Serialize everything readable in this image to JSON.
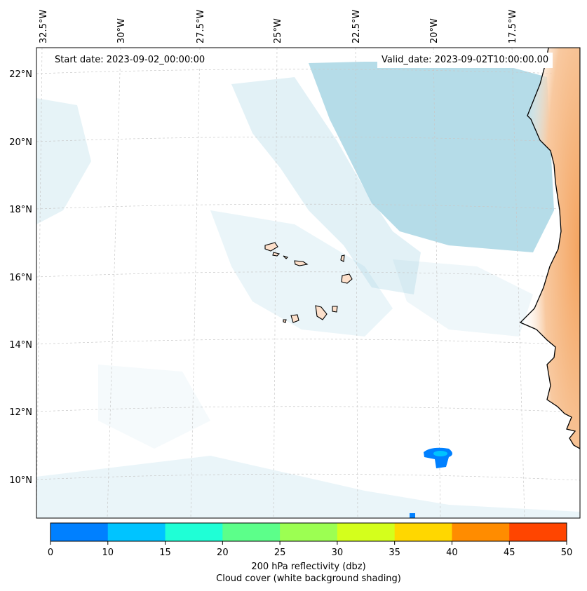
{
  "map": {
    "start_date": "Start date: 2023-09-02_00:00:00",
    "valid_date": "Valid_date: 2023-09-02T10:00:00.00",
    "lon_labels": [
      "32.5°W",
      "30°W",
      "27.5°W",
      "25°W",
      "22.5°W",
      "20°W",
      "17.5°W"
    ],
    "lat_labels": [
      "22°N",
      "20°N",
      "18°N",
      "16°N",
      "14°N",
      "12°N",
      "10°N"
    ],
    "land_color": "#f4a460",
    "cloud_color": "#add8e6",
    "grid": true
  },
  "colorbar": {
    "ticks": [
      "0",
      "10",
      "15",
      "20",
      "25",
      "30",
      "35",
      "40",
      "45",
      "50"
    ],
    "colors": [
      "#0080ff",
      "#00c4ff",
      "#1fffd6",
      "#5cff8a",
      "#9cff52",
      "#d4ff1c",
      "#ffd700",
      "#ff8c00",
      "#ff4500"
    ],
    "label_line1": "200 hPa reflectivity (dbz)",
    "label_line2": "Cloud cover (white background shading)"
  }
}
